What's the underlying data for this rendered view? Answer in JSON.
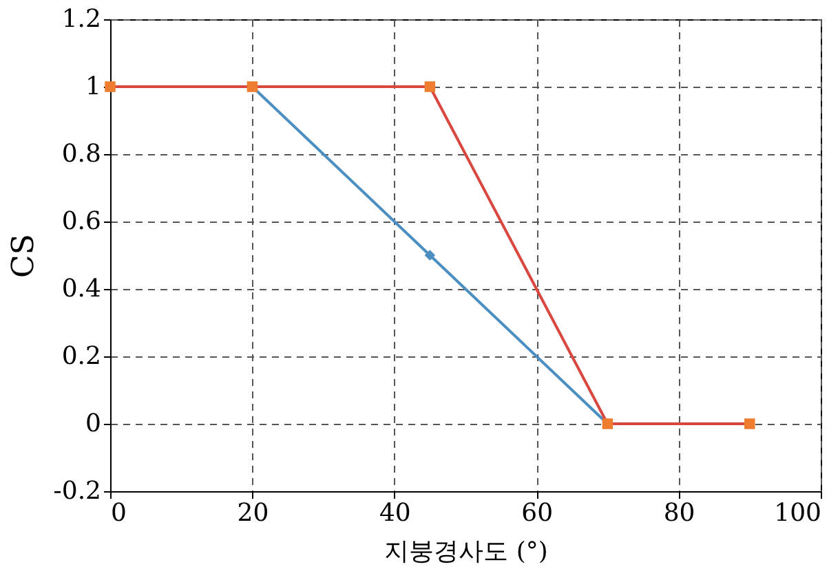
{
  "chart_data": {
    "type": "line",
    "xlabel": "지붕경사도 (°)",
    "ylabel": "CS",
    "xlim": [
      0,
      100
    ],
    "xticks": [
      0,
      20,
      40,
      60,
      80,
      100
    ],
    "ylim": [
      -0.2,
      1.2
    ],
    "yticks": [
      -0.2,
      0,
      0.2,
      0.4,
      0.6,
      0.8,
      1,
      1.2
    ],
    "grid": true,
    "series": [
      {
        "color": "#4a8ec2",
        "colors": [
          "#4a8ec2",
          "#4a8ec2",
          "#4a8ec2"
        ],
        "marker": "diamond",
        "x": [
          20,
          45,
          70
        ],
        "values": [
          1,
          0.5,
          0
        ]
      },
      {
        "color": "#d9473f",
        "colors": [
          "#ee7d2f",
          "#ee7d2f",
          "#ee7d2f",
          "#ee7d2f",
          "#ee7d2f"
        ],
        "marker": "square",
        "x": [
          0,
          20,
          45,
          70,
          90
        ],
        "values": [
          1,
          1,
          1,
          0,
          0
        ]
      }
    ]
  }
}
